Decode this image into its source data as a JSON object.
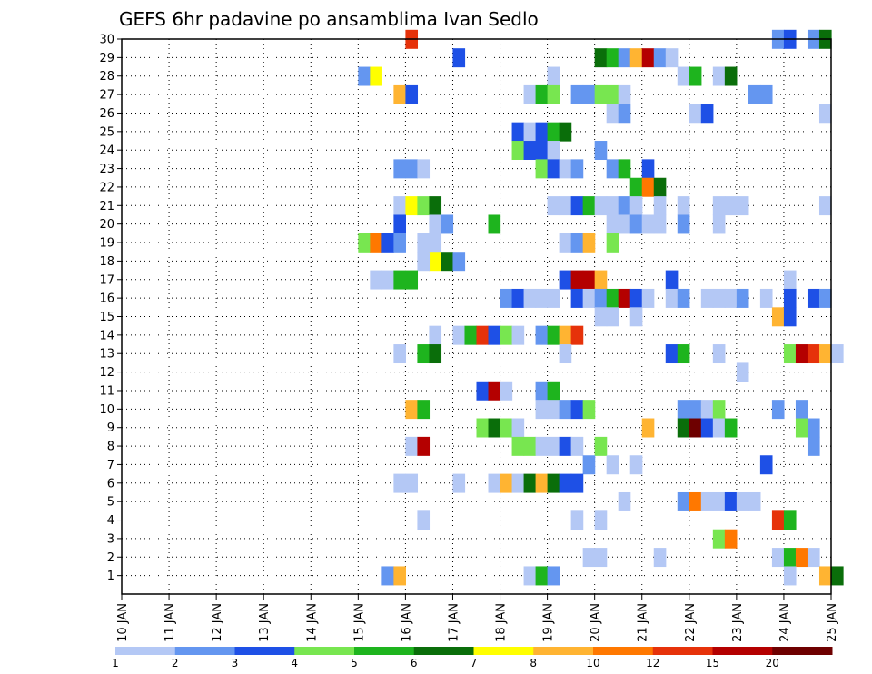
{
  "chart_data": {
    "type": "heatmap",
    "title": "GEFS 6hr padavine po ansamblima Ivan Sedlo",
    "x_tick_labels": [
      "10 JAN",
      "11 JAN",
      "12 JAN",
      "13 JAN",
      "14 JAN",
      "15 JAN",
      "16 JAN",
      "17 JAN",
      "18 JAN",
      "19 JAN",
      "20 JAN",
      "21 JAN",
      "22 JAN",
      "23 JAN",
      "24 JAN",
      "25 JAN"
    ],
    "x_range_days": [
      10,
      25
    ],
    "y_tick_labels": [
      "1",
      "2",
      "3",
      "4",
      "5",
      "6",
      "7",
      "8",
      "9",
      "10",
      "11",
      "12",
      "13",
      "14",
      "15",
      "16",
      "17",
      "18",
      "19",
      "20",
      "21",
      "22",
      "23",
      "24",
      "25",
      "26",
      "27",
      "28",
      "29",
      "30"
    ],
    "y_range": [
      0,
      30
    ],
    "grid": "dotted",
    "colorbar": {
      "position": "bottom",
      "labels": [
        "1",
        "2",
        "3",
        "4",
        "5",
        "6",
        "7",
        "8",
        "10",
        "12",
        "15",
        "20"
      ],
      "colors": [
        "#b4c8f5",
        "#6496f0",
        "#1e50e6",
        "#78e650",
        "#1eb41e",
        "#0a6e0a",
        "#ffff00",
        "#ffb432",
        "#ff7800",
        "#e6320a",
        "#b40000",
        "#6e0000"
      ]
    },
    "cell_hours": 6,
    "cells": [
      [
        16.0,
        30,
        9
      ],
      [
        23.75,
        30,
        1
      ],
      [
        24.0,
        30,
        2
      ],
      [
        24.5,
        30,
        1
      ],
      [
        24.75,
        30,
        5
      ],
      [
        17.0,
        29,
        2
      ],
      [
        20.0,
        29,
        5
      ],
      [
        20.25,
        29,
        4
      ],
      [
        20.5,
        29,
        1
      ],
      [
        20.75,
        29,
        7
      ],
      [
        21.0,
        29,
        10
      ],
      [
        21.25,
        29,
        1
      ],
      [
        21.5,
        29,
        0
      ],
      [
        15.0,
        28,
        1
      ],
      [
        15.25,
        28,
        6
      ],
      [
        19.0,
        28,
        0
      ],
      [
        21.75,
        28,
        0
      ],
      [
        22.0,
        28,
        4
      ],
      [
        22.5,
        28,
        0
      ],
      [
        22.75,
        28,
        5
      ],
      [
        15.75,
        27,
        7
      ],
      [
        16.0,
        27,
        2
      ],
      [
        18.5,
        27,
        0
      ],
      [
        18.75,
        27,
        4
      ],
      [
        19.0,
        27,
        3
      ],
      [
        19.5,
        27,
        1
      ],
      [
        19.75,
        27,
        1
      ],
      [
        20.0,
        27,
        3
      ],
      [
        20.25,
        27,
        3
      ],
      [
        20.5,
        27,
        0
      ],
      [
        23.25,
        27,
        1
      ],
      [
        23.5,
        27,
        1
      ],
      [
        20.25,
        26,
        0
      ],
      [
        20.5,
        26,
        1
      ],
      [
        22.0,
        26,
        0
      ],
      [
        22.25,
        26,
        2
      ],
      [
        24.75,
        26,
        0
      ],
      [
        18.25,
        25,
        2
      ],
      [
        18.5,
        25,
        0
      ],
      [
        18.75,
        25,
        2
      ],
      [
        19.0,
        25,
        4
      ],
      [
        19.25,
        25,
        5
      ],
      [
        18.25,
        24,
        3
      ],
      [
        18.5,
        24,
        2
      ],
      [
        18.75,
        24,
        2
      ],
      [
        19.0,
        24,
        0
      ],
      [
        20.0,
        24,
        1
      ],
      [
        15.75,
        23,
        1
      ],
      [
        16.0,
        23,
        1
      ],
      [
        16.25,
        23,
        0
      ],
      [
        18.75,
        23,
        3
      ],
      [
        19.0,
        23,
        2
      ],
      [
        19.25,
        23,
        0
      ],
      [
        19.5,
        23,
        1
      ],
      [
        20.25,
        23,
        1
      ],
      [
        20.5,
        23,
        4
      ],
      [
        21.0,
        23,
        2
      ],
      [
        20.75,
        22,
        4
      ],
      [
        21.0,
        22,
        8
      ],
      [
        21.25,
        22,
        5
      ],
      [
        15.75,
        21,
        0
      ],
      [
        16.0,
        21,
        6
      ],
      [
        16.25,
        21,
        3
      ],
      [
        16.5,
        21,
        5
      ],
      [
        19.0,
        21,
        0
      ],
      [
        19.25,
        21,
        0
      ],
      [
        19.5,
        21,
        2
      ],
      [
        19.75,
        21,
        4
      ],
      [
        20.0,
        21,
        0
      ],
      [
        20.25,
        21,
        0
      ],
      [
        20.5,
        21,
        1
      ],
      [
        20.75,
        21,
        0
      ],
      [
        21.25,
        21,
        0
      ],
      [
        21.75,
        21,
        0
      ],
      [
        22.5,
        21,
        0
      ],
      [
        22.75,
        21,
        0
      ],
      [
        23.0,
        21,
        0
      ],
      [
        24.75,
        21,
        0
      ],
      [
        15.75,
        20,
        2
      ],
      [
        16.5,
        20,
        0
      ],
      [
        16.75,
        20,
        1
      ],
      [
        17.75,
        20,
        4
      ],
      [
        20.25,
        20,
        0
      ],
      [
        20.5,
        20,
        0
      ],
      [
        20.75,
        20,
        1
      ],
      [
        21.0,
        20,
        0
      ],
      [
        21.25,
        20,
        0
      ],
      [
        21.75,
        20,
        1
      ],
      [
        22.5,
        20,
        0
      ],
      [
        15.0,
        19,
        3
      ],
      [
        15.25,
        19,
        8
      ],
      [
        15.5,
        19,
        2
      ],
      [
        15.75,
        19,
        1
      ],
      [
        16.25,
        19,
        0
      ],
      [
        16.5,
        19,
        0
      ],
      [
        19.25,
        19,
        0
      ],
      [
        19.5,
        19,
        1
      ],
      [
        19.75,
        19,
        7
      ],
      [
        20.25,
        19,
        3
      ],
      [
        16.5,
        18,
        6
      ],
      [
        16.75,
        18,
        5
      ],
      [
        17.0,
        18,
        1
      ],
      [
        16.25,
        18,
        0
      ],
      [
        15.25,
        17,
        0
      ],
      [
        15.5,
        17,
        0
      ],
      [
        15.75,
        17,
        4
      ],
      [
        16.0,
        17,
        4
      ],
      [
        19.25,
        17,
        2
      ],
      [
        19.5,
        17,
        10
      ],
      [
        19.75,
        17,
        10
      ],
      [
        20.0,
        17,
        7
      ],
      [
        21.5,
        17,
        2
      ],
      [
        24.0,
        17,
        0
      ],
      [
        18.0,
        16,
        1
      ],
      [
        18.25,
        16,
        2
      ],
      [
        18.5,
        16,
        0
      ],
      [
        18.75,
        16,
        0
      ],
      [
        19.0,
        16,
        0
      ],
      [
        19.5,
        16,
        2
      ],
      [
        19.75,
        16,
        0
      ],
      [
        20.0,
        16,
        1
      ],
      [
        20.25,
        16,
        4
      ],
      [
        20.5,
        16,
        10
      ],
      [
        20.75,
        16,
        2
      ],
      [
        21.0,
        16,
        0
      ],
      [
        21.5,
        16,
        0
      ],
      [
        21.75,
        16,
        1
      ],
      [
        22.25,
        16,
        0
      ],
      [
        22.5,
        16,
        0
      ],
      [
        22.75,
        16,
        0
      ],
      [
        23.0,
        16,
        1
      ],
      [
        23.5,
        16,
        0
      ],
      [
        24.0,
        16,
        2
      ],
      [
        24.5,
        16,
        2
      ],
      [
        24.75,
        16,
        1
      ],
      [
        20.0,
        15,
        0
      ],
      [
        20.25,
        15,
        0
      ],
      [
        20.75,
        15,
        0
      ],
      [
        23.75,
        15,
        7
      ],
      [
        24.0,
        15,
        2
      ],
      [
        16.5,
        14,
        0
      ],
      [
        17.0,
        14,
        0
      ],
      [
        17.25,
        14,
        4
      ],
      [
        17.5,
        14,
        9
      ],
      [
        17.75,
        14,
        2
      ],
      [
        18.0,
        14,
        3
      ],
      [
        18.25,
        14,
        0
      ],
      [
        18.75,
        14,
        1
      ],
      [
        19.0,
        14,
        4
      ],
      [
        19.25,
        14,
        7
      ],
      [
        19.5,
        14,
        9
      ],
      [
        15.75,
        13,
        0
      ],
      [
        16.25,
        13,
        4
      ],
      [
        16.5,
        13,
        5
      ],
      [
        19.25,
        13,
        0
      ],
      [
        21.5,
        13,
        2
      ],
      [
        21.75,
        13,
        4
      ],
      [
        22.5,
        13,
        0
      ],
      [
        24.0,
        13,
        3
      ],
      [
        24.25,
        13,
        10
      ],
      [
        24.5,
        13,
        9
      ],
      [
        24.75,
        13,
        7
      ],
      [
        25.0,
        13,
        0
      ],
      [
        23.0,
        12,
        0
      ],
      [
        17.5,
        11,
        2
      ],
      [
        17.75,
        11,
        10
      ],
      [
        18.0,
        11,
        0
      ],
      [
        18.75,
        11,
        1
      ],
      [
        19.0,
        11,
        4
      ],
      [
        16.0,
        10,
        7
      ],
      [
        16.25,
        10,
        4
      ],
      [
        18.75,
        10,
        0
      ],
      [
        19.0,
        10,
        0
      ],
      [
        19.25,
        10,
        1
      ],
      [
        19.5,
        10,
        2
      ],
      [
        19.75,
        10,
        3
      ],
      [
        21.75,
        10,
        1
      ],
      [
        22.0,
        10,
        1
      ],
      [
        22.25,
        10,
        0
      ],
      [
        22.5,
        10,
        3
      ],
      [
        23.75,
        10,
        1
      ],
      [
        24.25,
        10,
        1
      ],
      [
        17.5,
        9,
        3
      ],
      [
        17.75,
        9,
        5
      ],
      [
        18.0,
        9,
        3
      ],
      [
        18.25,
        9,
        0
      ],
      [
        21.0,
        9,
        7
      ],
      [
        21.75,
        9,
        5
      ],
      [
        22.0,
        9,
        11
      ],
      [
        22.25,
        9,
        2
      ],
      [
        22.5,
        9,
        0
      ],
      [
        22.75,
        9,
        4
      ],
      [
        24.25,
        9,
        3
      ],
      [
        24.5,
        9,
        1
      ],
      [
        18.25,
        8,
        3
      ],
      [
        18.5,
        8,
        3
      ],
      [
        18.75,
        8,
        0
      ],
      [
        19.0,
        8,
        0
      ],
      [
        19.25,
        8,
        2
      ],
      [
        19.5,
        8,
        0
      ],
      [
        16.0,
        8,
        0
      ],
      [
        16.25,
        8,
        10
      ],
      [
        20.0,
        8,
        3
      ],
      [
        24.5,
        8,
        1
      ],
      [
        19.75,
        7,
        1
      ],
      [
        20.25,
        7,
        0
      ],
      [
        20.75,
        7,
        0
      ],
      [
        23.5,
        7,
        2
      ],
      [
        15.75,
        6,
        0
      ],
      [
        16.0,
        6,
        0
      ],
      [
        17.0,
        6,
        0
      ],
      [
        17.75,
        6,
        0
      ],
      [
        18.0,
        6,
        7
      ],
      [
        18.25,
        6,
        0
      ],
      [
        18.5,
        6,
        5
      ],
      [
        18.75,
        6,
        7
      ],
      [
        19.0,
        6,
        5
      ],
      [
        19.25,
        6,
        2
      ],
      [
        19.5,
        6,
        2
      ],
      [
        20.5,
        5,
        0
      ],
      [
        21.75,
        5,
        1
      ],
      [
        22.0,
        5,
        8
      ],
      [
        22.25,
        5,
        0
      ],
      [
        22.5,
        5,
        0
      ],
      [
        22.75,
        5,
        2
      ],
      [
        23.0,
        5,
        0
      ],
      [
        23.25,
        5,
        0
      ],
      [
        16.25,
        4,
        0
      ],
      [
        19.5,
        4,
        0
      ],
      [
        20.0,
        4,
        0
      ],
      [
        23.75,
        4,
        9
      ],
      [
        24.0,
        4,
        4
      ],
      [
        22.5,
        3,
        3
      ],
      [
        22.75,
        3,
        8
      ],
      [
        19.75,
        2,
        0
      ],
      [
        20.0,
        2,
        0
      ],
      [
        21.25,
        2,
        0
      ],
      [
        23.75,
        2,
        0
      ],
      [
        24.0,
        2,
        4
      ],
      [
        24.25,
        2,
        8
      ],
      [
        24.5,
        2,
        0
      ],
      [
        15.5,
        1,
        1
      ],
      [
        15.75,
        1,
        7
      ],
      [
        18.5,
        1,
        0
      ],
      [
        18.75,
        1,
        4
      ],
      [
        19.0,
        1,
        1
      ],
      [
        24.0,
        1,
        0
      ],
      [
        24.75,
        1,
        7
      ],
      [
        25.0,
        1,
        5
      ]
    ]
  }
}
